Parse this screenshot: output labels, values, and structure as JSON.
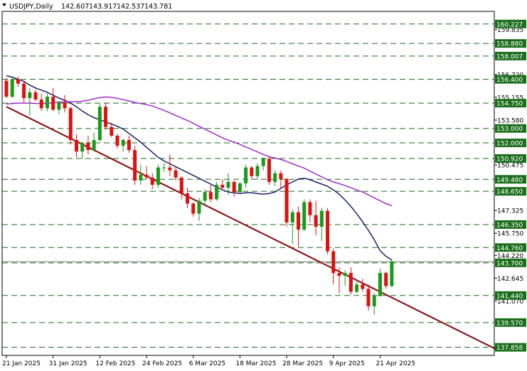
{
  "chart_data": {
    "type": "candlestick",
    "symbol": "USDJPY",
    "timeframe": "Daily",
    "ohlc_header": [
      "142.607",
      "143.917",
      "142.537",
      "143.781"
    ],
    "y_axis": {
      "min": 137.3,
      "max": 161.1,
      "ticks": [
        "159.835",
        "156.720",
        "155.155",
        "153.580",
        "150.475",
        "147.325",
        "145.750",
        "144.220",
        "142.645",
        "141.070"
      ]
    },
    "x_axis": {
      "labels": [
        {
          "label": "21 Jan 2025",
          "index": 0
        },
        {
          "label": "31 Jan 2025",
          "index": 8
        },
        {
          "label": "12 Feb 2025",
          "index": 16
        },
        {
          "label": "24 Feb 2025",
          "index": 24
        },
        {
          "label": "6 Mar 2025",
          "index": 32
        },
        {
          "label": "18 Mar 2025",
          "index": 40
        },
        {
          "label": "28 Mar 2025",
          "index": 48
        },
        {
          "label": "9 Apr 2025",
          "index": 56
        },
        {
          "label": "21 Apr 2025",
          "index": 64
        }
      ]
    },
    "levels": [
      {
        "label": "160.227",
        "value": 160.227
      },
      {
        "label": "158.880",
        "value": 158.88
      },
      {
        "label": "158.007",
        "value": 158.007
      },
      {
        "label": "156.400",
        "value": 156.4
      },
      {
        "label": "154.750",
        "value": 154.75
      },
      {
        "label": "153.000",
        "value": 153.0
      },
      {
        "label": "152.000",
        "value": 152.0
      },
      {
        "label": "150.920",
        "value": 150.92
      },
      {
        "label": "149.480",
        "value": 149.48
      },
      {
        "label": "148.650",
        "value": 148.65
      },
      {
        "label": "146.350",
        "value": 146.35
      },
      {
        "label": "144.760",
        "value": 144.76
      },
      {
        "label": "143.700",
        "value": 143.7
      },
      {
        "label": "141.440",
        "value": 141.44
      },
      {
        "label": "139.570",
        "value": 139.57
      },
      {
        "label": "137.858",
        "value": 137.858
      }
    ],
    "current_price": 143.781,
    "candles": [
      [
        156.3,
        156.5,
        155.1,
        155.2
      ],
      [
        155.2,
        156.6,
        155.1,
        156.4
      ],
      [
        156.4,
        156.6,
        155.9,
        156.1
      ],
      [
        156.1,
        156.3,
        154.8,
        155.1
      ],
      [
        155.1,
        155.8,
        153.9,
        155.5
      ],
      [
        155.5,
        155.7,
        154.9,
        155.0
      ],
      [
        155.0,
        155.4,
        154.2,
        154.4
      ],
      [
        154.4,
        155.4,
        154.2,
        155.2
      ],
      [
        155.2,
        155.8,
        154.2,
        154.3
      ],
      [
        154.3,
        154.9,
        154.0,
        154.8
      ],
      [
        154.8,
        155.3,
        154.1,
        154.4
      ],
      [
        154.4,
        154.5,
        151.9,
        152.2
      ],
      [
        152.2,
        152.6,
        151.0,
        151.4
      ],
      [
        151.4,
        152.1,
        150.9,
        152.0
      ],
      [
        152.0,
        152.5,
        151.2,
        151.5
      ],
      [
        151.5,
        152.7,
        151.4,
        152.2
      ],
      [
        152.2,
        154.7,
        152.1,
        154.5
      ],
      [
        154.5,
        154.8,
        152.9,
        153.1
      ],
      [
        153.1,
        153.4,
        152.4,
        152.5
      ],
      [
        152.5,
        152.6,
        151.6,
        151.8
      ],
      [
        151.8,
        152.3,
        151.4,
        152.2
      ],
      [
        152.2,
        152.5,
        151.3,
        151.5
      ],
      [
        151.5,
        151.8,
        149.1,
        149.4
      ],
      [
        149.4,
        150.5,
        149.1,
        149.8
      ],
      [
        149.8,
        150.4,
        149.5,
        149.6
      ],
      [
        149.6,
        149.9,
        148.8,
        149.1
      ],
      [
        149.1,
        150.5,
        148.9,
        150.3
      ],
      [
        150.3,
        150.6,
        150.0,
        150.3
      ],
      [
        150.3,
        151.2,
        149.7,
        150.1
      ],
      [
        150.1,
        150.4,
        149.4,
        149.6
      ],
      [
        149.6,
        149.7,
        148.1,
        148.5
      ],
      [
        148.5,
        148.9,
        147.5,
        147.8
      ],
      [
        147.8,
        147.9,
        146.9,
        147.1
      ],
      [
        147.1,
        148.2,
        146.6,
        148.0
      ],
      [
        148.0,
        148.8,
        147.7,
        148.6
      ],
      [
        148.6,
        149.1,
        147.9,
        148.1
      ],
      [
        148.1,
        149.3,
        148.0,
        149.1
      ],
      [
        149.1,
        149.5,
        148.7,
        148.9
      ],
      [
        148.9,
        149.9,
        148.4,
        149.3
      ],
      [
        149.3,
        149.4,
        148.3,
        148.6
      ],
      [
        148.6,
        149.3,
        148.5,
        149.2
      ],
      [
        149.2,
        150.5,
        148.9,
        150.3
      ],
      [
        150.3,
        150.4,
        149.5,
        149.7
      ],
      [
        149.7,
        150.6,
        149.5,
        150.4
      ],
      [
        150.4,
        151.0,
        150.1,
        150.9
      ],
      [
        150.9,
        151.1,
        149.1,
        149.3
      ],
      [
        149.3,
        150.1,
        149.0,
        149.9
      ],
      [
        149.9,
        150.1,
        148.9,
        149.5
      ],
      [
        149.5,
        149.6,
        146.2,
        146.5
      ],
      [
        146.5,
        147.4,
        145.0,
        147.2
      ],
      [
        147.2,
        147.6,
        144.8,
        146.0
      ],
      [
        146.0,
        148.1,
        145.9,
        147.9
      ],
      [
        147.9,
        148.1,
        146.5,
        147.0
      ],
      [
        147.0,
        148.0,
        145.6,
        146.2
      ],
      [
        146.2,
        147.5,
        145.2,
        147.3
      ],
      [
        147.3,
        147.5,
        144.3,
        144.5
      ],
      [
        144.5,
        144.7,
        142.2,
        143.0
      ],
      [
        143.0,
        143.4,
        141.6,
        142.8
      ],
      [
        142.8,
        143.2,
        142.1,
        143.0
      ],
      [
        143.0,
        143.4,
        141.5,
        141.7
      ],
      [
        141.7,
        142.4,
        141.6,
        142.2
      ],
      [
        142.2,
        142.6,
        141.7,
        141.9
      ],
      [
        141.9,
        142.2,
        140.4,
        140.7
      ],
      [
        140.7,
        141.6,
        140.1,
        141.4
      ],
      [
        141.4,
        143.3,
        141.4,
        143.0
      ],
      [
        143.0,
        143.1,
        141.9,
        142.1
      ],
      [
        142.1,
        143.9,
        142.0,
        143.8
      ]
    ],
    "series": [
      {
        "type": "moving-average",
        "color": "#1a2066",
        "values": [
          156.65,
          156.55,
          156.4,
          156.25,
          156.0,
          155.8,
          155.65,
          155.5,
          155.3,
          155.1,
          154.95,
          154.75,
          154.5,
          154.2,
          153.95,
          153.75,
          153.6,
          153.45,
          153.3,
          153.15,
          152.95,
          152.65,
          152.35,
          152.05,
          151.7,
          151.35,
          151.0,
          150.75,
          150.55,
          150.35,
          150.15,
          149.95,
          149.75,
          149.55,
          149.35,
          149.15,
          148.95,
          148.75,
          148.6,
          148.55,
          148.5,
          148.55,
          148.55,
          148.5,
          148.45,
          148.5,
          148.6,
          148.85,
          149.1,
          149.3,
          149.5,
          149.55,
          149.45,
          149.3,
          149.15,
          149.0,
          148.75,
          148.45,
          148.05,
          147.6,
          147.1,
          146.55,
          145.95,
          145.3,
          144.55,
          144.15,
          143.9
        ]
      },
      {
        "type": "moving-average",
        "color": "#a030c8",
        "values": [
          154.7,
          154.72,
          154.75,
          154.75,
          154.75,
          154.73,
          154.72,
          154.73,
          154.78,
          154.82,
          154.85,
          154.85,
          154.85,
          154.88,
          154.95,
          155.05,
          155.13,
          155.18,
          155.15,
          155.08,
          155.0,
          154.9,
          154.8,
          154.72,
          154.65,
          154.55,
          154.4,
          154.25,
          154.08,
          153.9,
          153.72,
          153.55,
          153.35,
          153.15,
          152.95,
          152.75,
          152.55,
          152.35,
          152.18,
          152.05,
          151.9,
          151.72,
          151.55,
          151.38,
          151.2,
          151.05,
          150.95,
          150.85,
          150.72,
          150.55,
          150.4,
          150.25,
          150.05,
          149.85,
          149.65,
          149.45,
          149.3,
          149.18,
          149.05,
          148.9,
          148.75,
          148.6,
          148.4,
          148.2,
          148.0,
          147.8,
          147.65
        ]
      },
      {
        "type": "trendline",
        "color": "#8b1a1a",
        "values": [
          154.5,
          153.9,
          153.3,
          152.7,
          152.1,
          151.5,
          150.9,
          150.3,
          149.7,
          149.1,
          148.5,
          147.9,
          147.3,
          146.7,
          146.1,
          145.5,
          144.9,
          144.3,
          143.7,
          143.1,
          142.5,
          141.9,
          141.3,
          140.7,
          140.1,
          139.5,
          138.9,
          138.3,
          137.7
        ]
      }
    ]
  }
}
